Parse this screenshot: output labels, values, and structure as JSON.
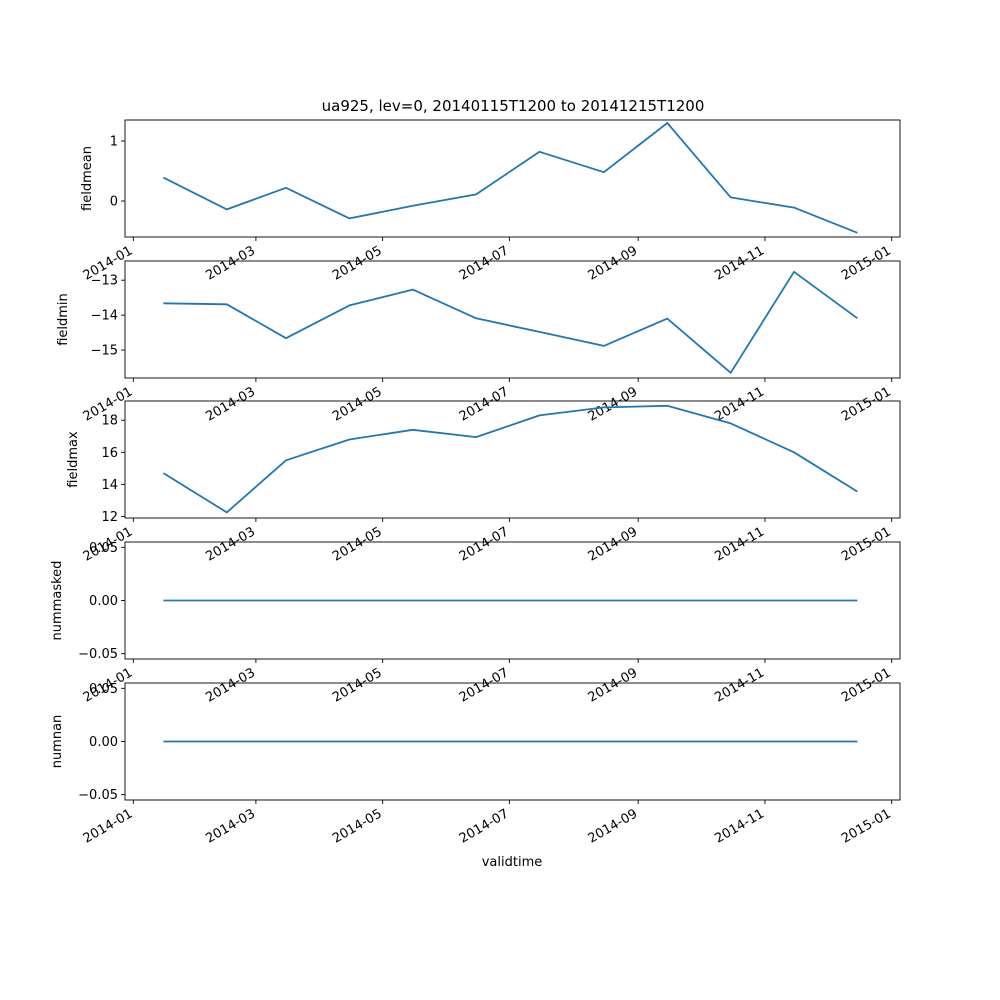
{
  "chart_data": {
    "type": "line",
    "title": "ua925, lev=0, 20140115T1200 to 20141215T1200",
    "xlabel": "validtime",
    "x": [
      "2014-01-15T12:00",
      "2014-02-15T00:00",
      "2014-03-15T12:00",
      "2014-04-15T00:00",
      "2014-05-15T12:00",
      "2014-06-15T00:00",
      "2014-07-15T12:00",
      "2014-08-15T12:00",
      "2014-09-15T00:00",
      "2014-10-15T12:00",
      "2014-11-15T00:00",
      "2014-12-15T12:00"
    ],
    "x_range": [
      "2013-12-28",
      "2015-01-05"
    ],
    "x_ticks": [
      "2014-01-01",
      "2014-03-01",
      "2014-05-01",
      "2014-07-01",
      "2014-09-01",
      "2014-11-01",
      "2015-01-01"
    ],
    "x_tick_labels": [
      "2014-01",
      "2014-03",
      "2014-05",
      "2014-07",
      "2014-09",
      "2014-11",
      "2015-01"
    ],
    "line_color": "#1f77b4",
    "grid": false,
    "panels": [
      {
        "ylabel": "fieldmean",
        "ylim": [
          -0.6,
          1.35
        ],
        "yticks": [
          0,
          1
        ],
        "ytick_labels": [
          "0",
          "1"
        ],
        "values": [
          0.39,
          -0.14,
          0.22,
          -0.29,
          -0.08,
          0.11,
          0.82,
          0.48,
          1.3,
          0.06,
          -0.11,
          -0.53
        ]
      },
      {
        "ylabel": "fieldmin",
        "ylim": [
          -15.8,
          -12.45
        ],
        "yticks": [
          -15,
          -14,
          -13
        ],
        "ytick_labels": [
          "−15",
          "−14",
          "−13"
        ],
        "values": [
          -13.66,
          -13.69,
          -14.66,
          -13.72,
          -13.27,
          -14.09,
          -14.48,
          -14.88,
          -14.1,
          -15.65,
          -12.76,
          -14.09
        ]
      },
      {
        "ylabel": "fieldmax",
        "ylim": [
          11.9,
          19.2
        ],
        "yticks": [
          12,
          14,
          16,
          18
        ],
        "ytick_labels": [
          "12",
          "14",
          "16",
          "18"
        ],
        "values": [
          14.7,
          12.25,
          15.5,
          16.8,
          17.4,
          16.95,
          18.3,
          18.8,
          18.9,
          17.8,
          16.0,
          13.55
        ]
      },
      {
        "ylabel": "nummasked",
        "ylim": [
          -0.055,
          0.055
        ],
        "yticks": [
          -0.05,
          0,
          0.05
        ],
        "ytick_labels": [
          "−0.05",
          "0.00",
          "0.05"
        ],
        "values": [
          0,
          0,
          0,
          0,
          0,
          0,
          0,
          0,
          0,
          0,
          0,
          0
        ]
      },
      {
        "ylabel": "numnan",
        "ylim": [
          -0.055,
          0.055
        ],
        "yticks": [
          -0.05,
          0,
          0.05
        ],
        "ytick_labels": [
          "−0.05",
          "0.00",
          "0.05"
        ],
        "values": [
          0,
          0,
          0,
          0,
          0,
          0,
          0,
          0,
          0,
          0,
          0,
          0
        ]
      }
    ]
  }
}
